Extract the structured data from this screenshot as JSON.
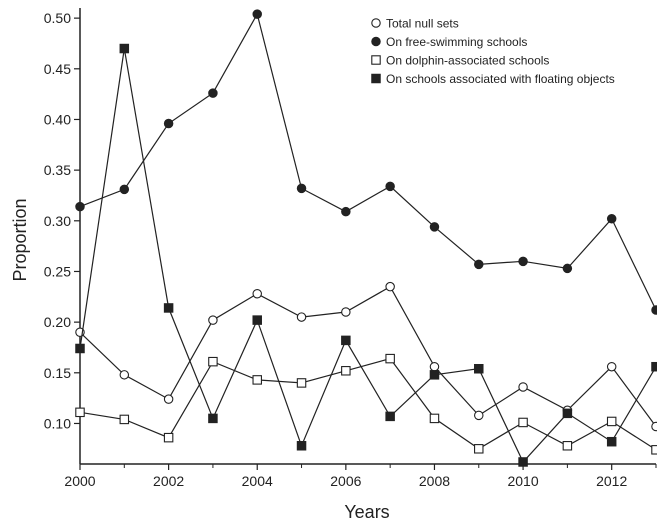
{
  "chart_data": {
    "type": "line",
    "title": "",
    "xlabel": "Years",
    "ylabel": "Proportion",
    "xlim": [
      2000,
      2013
    ],
    "ylim": [
      0.06,
      0.51
    ],
    "x_ticks": [
      "2000",
      "2002",
      "2004",
      "2006",
      "2008",
      "2010",
      "2012"
    ],
    "y_ticks": [
      "0.10",
      "0.15",
      "0.20",
      "0.25",
      "0.30",
      "0.35",
      "0.40",
      "0.45",
      "0.50"
    ],
    "grid": false,
    "legend_position": "top-right",
    "x": [
      2000,
      2001,
      2002,
      2003,
      2004,
      2005,
      2006,
      2007,
      2008,
      2009,
      2010,
      2011,
      2012,
      2013
    ],
    "series": [
      {
        "name": "Total null sets",
        "marker": "open-circle",
        "values": [
          0.19,
          0.148,
          0.124,
          0.202,
          0.228,
          0.205,
          0.21,
          0.235,
          0.156,
          0.108,
          0.136,
          0.113,
          0.156,
          0.097
        ]
      },
      {
        "name": "On free-swimming schools",
        "marker": "filled-circle",
        "values": [
          0.314,
          0.331,
          0.396,
          0.426,
          0.504,
          0.332,
          0.309,
          0.334,
          0.294,
          0.257,
          0.26,
          0.253,
          0.302,
          0.212
        ]
      },
      {
        "name": "On dolphin-associated schools",
        "marker": "open-square",
        "values": [
          0.111,
          0.104,
          0.086,
          0.161,
          0.143,
          0.14,
          0.152,
          0.164,
          0.105,
          0.075,
          0.101,
          0.078,
          0.102,
          0.074
        ]
      },
      {
        "name": "On schools associated with floating objects",
        "marker": "filled-square",
        "values": [
          0.174,
          0.47,
          0.214,
          0.105,
          0.202,
          0.078,
          0.182,
          0.107,
          0.148,
          0.154,
          0.062,
          0.11,
          0.082,
          0.156
        ]
      }
    ],
    "colors": {
      "line": "#222222",
      "marker_fill": "#222222",
      "marker_open_fill": "#ffffff"
    }
  }
}
